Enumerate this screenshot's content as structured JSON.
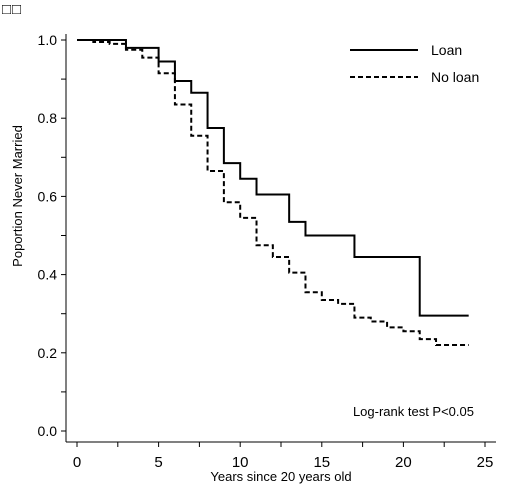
{
  "corner_mark": "□□",
  "chart_data": {
    "type": "line",
    "chart_kind": "kaplan-meier step plot",
    "title": "",
    "xlabel": "Years since 20 years old",
    "ylabel": "Poportion Never Married",
    "xlim": [
      0,
      25
    ],
    "ylim": [
      0,
      1.0
    ],
    "x_ticks": [
      0,
      5,
      10,
      15,
      20,
      25
    ],
    "y_ticks": [
      0.0,
      0.2,
      0.4,
      0.6,
      0.8,
      1.0
    ],
    "y_tick_labels": [
      "0.0",
      "0.2",
      "0.4",
      "0.6",
      "0.8",
      "1.0"
    ],
    "grid": false,
    "legend_position": "top-right",
    "annotation": "Log-rank test  P<0.05",
    "series": [
      {
        "name": "Loan",
        "line_style": "solid",
        "color": "#000000",
        "x": [
          0,
          3,
          5,
          6,
          7,
          8,
          9,
          10,
          11,
          13,
          14,
          17,
          21,
          24
        ],
        "y": [
          1.0,
          0.98,
          0.945,
          0.895,
          0.865,
          0.775,
          0.685,
          0.645,
          0.605,
          0.535,
          0.5,
          0.445,
          0.295,
          0.295
        ]
      },
      {
        "name": "No loan",
        "line_style": "dashed",
        "color": "#000000",
        "x": [
          0,
          1,
          2,
          3,
          4,
          5,
          6,
          7,
          8,
          9,
          10,
          11,
          12,
          13,
          14,
          15,
          16,
          17,
          18,
          19,
          20,
          21,
          22,
          23,
          24
        ],
        "y": [
          1.0,
          0.995,
          0.99,
          0.975,
          0.955,
          0.915,
          0.835,
          0.755,
          0.665,
          0.585,
          0.545,
          0.475,
          0.445,
          0.405,
          0.355,
          0.335,
          0.325,
          0.29,
          0.28,
          0.265,
          0.255,
          0.235,
          0.22,
          0.22,
          0.22
        ]
      }
    ]
  }
}
